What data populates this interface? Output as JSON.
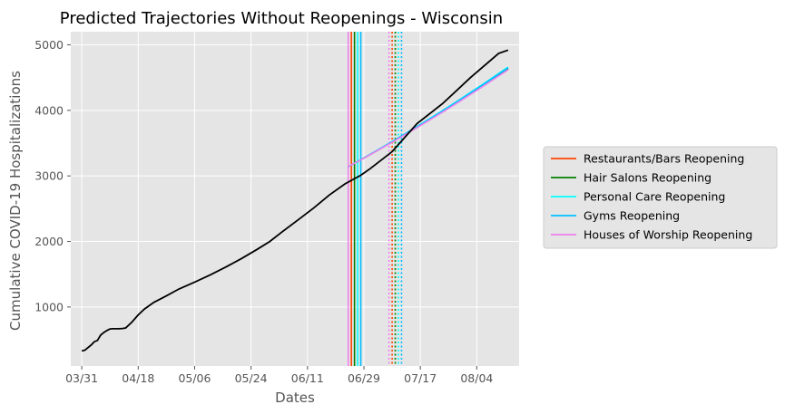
{
  "chart_data": {
    "type": "line",
    "title": "Predicted Trajectories Without Reopenings - Wisconsin",
    "xlabel": "Dates",
    "ylabel": "Cumulative COVID-19 Hospitalizations",
    "x_axis": {
      "kind": "date",
      "start": "03/31",
      "end": "08/14",
      "ticks": [
        "03/31",
        "04/18",
        "05/06",
        "05/24",
        "06/11",
        "06/29",
        "07/17",
        "08/04"
      ]
    },
    "y_axis": {
      "ylim": [
        100,
        5200
      ],
      "ticks": [
        1000,
        2000,
        3000,
        4000,
        5000
      ]
    },
    "grid": true,
    "legend_placement": "right, outside plot",
    "observed": {
      "color": "#000000",
      "points": [
        [
          "03/31",
          330
        ],
        [
          "04/01",
          340
        ],
        [
          "04/03",
          420
        ],
        [
          "04/04",
          470
        ],
        [
          "04/05",
          490
        ],
        [
          "04/06",
          570
        ],
        [
          "04/07",
          610
        ],
        [
          "04/08",
          640
        ],
        [
          "04/09",
          665
        ],
        [
          "04/10",
          668
        ],
        [
          "04/11",
          668
        ],
        [
          "04/12",
          670
        ],
        [
          "04/13",
          672
        ],
        [
          "04/14",
          680
        ],
        [
          "04/16",
          770
        ],
        [
          "04/18",
          880
        ],
        [
          "04/20",
          970
        ],
        [
          "04/23",
          1070
        ],
        [
          "04/27",
          1170
        ],
        [
          "05/01",
          1275
        ],
        [
          "05/06",
          1380
        ],
        [
          "05/11",
          1490
        ],
        [
          "05/16",
          1610
        ],
        [
          "05/21",
          1740
        ],
        [
          "05/26",
          1880
        ],
        [
          "05/30",
          2000
        ],
        [
          "06/03",
          2150
        ],
        [
          "06/08",
          2330
        ],
        [
          "06/13",
          2510
        ],
        [
          "06/18",
          2710
        ],
        [
          "06/23",
          2880
        ],
        [
          "06/28",
          3010
        ],
        [
          "07/01",
          3110
        ],
        [
          "07/08",
          3370
        ],
        [
          "07/16",
          3800
        ],
        [
          "07/24",
          4100
        ],
        [
          "08/02",
          4500
        ],
        [
          "08/11",
          4870
        ],
        [
          "08/14",
          4920
        ]
      ]
    },
    "predicted_segment": {
      "start": "06/24",
      "end": "08/14",
      "start_value": 3140,
      "end_values": {
        "Restaurants/Bars Reopening": 4630,
        "Hair Salons Reopening": 4640,
        "Personal Care Reopening": 4660,
        "Gyms Reopening": 4650,
        "Houses of Worship Reopening": 4620
      }
    },
    "series": [
      {
        "name": "Restaurants/Bars Reopening",
        "color": "#ff4500",
        "solid_vline": "06/25",
        "dotted_vline": "07/08"
      },
      {
        "name": "Hair Salons Reopening",
        "color": "#008000",
        "solid_vline": "06/26",
        "dotted_vline": "07/09"
      },
      {
        "name": "Personal Care Reopening",
        "color": "#00ffff",
        "solid_vline": "06/27",
        "dotted_vline": "07/10"
      },
      {
        "name": "Gyms Reopening",
        "color": "#00bfff",
        "solid_vline": "06/28",
        "dotted_vline": "07/11"
      },
      {
        "name": "Houses of Worship Reopening",
        "color": "#ee82ee",
        "solid_vline": "06/24",
        "dotted_vline": "07/07"
      }
    ]
  }
}
